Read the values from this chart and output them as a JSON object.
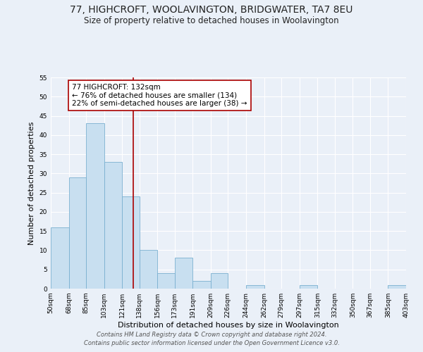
{
  "title": "77, HIGHCROFT, WOOLAVINGTON, BRIDGWATER, TA7 8EU",
  "subtitle": "Size of property relative to detached houses in Woolavington",
  "xlabel": "Distribution of detached houses by size in Woolavington",
  "ylabel": "Number of detached properties",
  "footer_lines": [
    "Contains HM Land Registry data © Crown copyright and database right 2024.",
    "Contains public sector information licensed under the Open Government Licence v3.0."
  ],
  "bar_edges": [
    50,
    68,
    85,
    103,
    121,
    138,
    156,
    173,
    191,
    209,
    226,
    244,
    262,
    279,
    297,
    315,
    332,
    350,
    367,
    385,
    403
  ],
  "bar_heights": [
    16,
    29,
    43,
    33,
    24,
    10,
    4,
    8,
    2,
    4,
    0,
    1,
    0,
    0,
    1,
    0,
    0,
    0,
    0,
    1
  ],
  "bar_color": "#c8dff0",
  "bar_edgecolor": "#7ab0d0",
  "vline_x": 132,
  "vline_color": "#aa0000",
  "annotation_text_line1": "77 HIGHCROFT: 132sqm",
  "annotation_text_line2": "← 76% of detached houses are smaller (134)",
  "annotation_text_line3": "22% of semi-detached houses are larger (38) →",
  "annotation_box_edgecolor": "#aa0000",
  "ylim": [
    0,
    55
  ],
  "yticks": [
    0,
    5,
    10,
    15,
    20,
    25,
    30,
    35,
    40,
    45,
    50,
    55
  ],
  "tick_labels": [
    "50sqm",
    "68sqm",
    "85sqm",
    "103sqm",
    "121sqm",
    "138sqm",
    "156sqm",
    "173sqm",
    "191sqm",
    "209sqm",
    "226sqm",
    "244sqm",
    "262sqm",
    "279sqm",
    "297sqm",
    "315sqm",
    "332sqm",
    "350sqm",
    "367sqm",
    "385sqm",
    "403sqm"
  ],
  "background_color": "#eaf0f8",
  "plot_background_color": "#eaf0f8",
  "title_fontsize": 10,
  "subtitle_fontsize": 8.5,
  "axis_label_fontsize": 8,
  "tick_fontsize": 6.5,
  "annotation_fontsize": 7.5,
  "footer_fontsize": 6
}
